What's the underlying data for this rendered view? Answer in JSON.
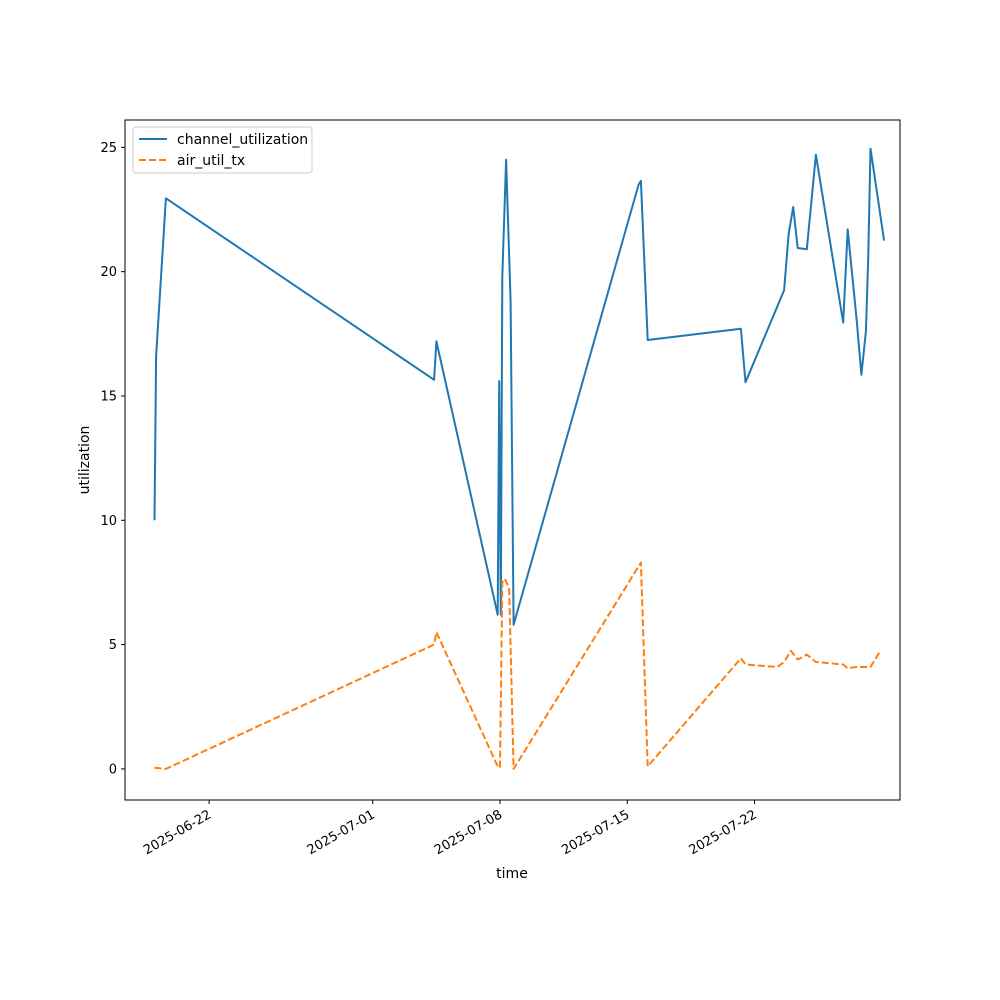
{
  "chart_data": {
    "type": "line",
    "xlabel": "time",
    "ylabel": "utilization",
    "ylim": [
      -1.25,
      26.1
    ],
    "xlim": [
      "2025-06-17T09:00:00",
      "2025-07-30T00:00:00"
    ],
    "x_ticks": [
      "2025-06-22",
      "2025-07-01",
      "2025-07-08",
      "2025-07-15",
      "2025-07-22"
    ],
    "y_ticks": [
      0,
      5,
      10,
      15,
      20,
      25
    ],
    "grid": false,
    "legend_position": "top-left",
    "series": [
      {
        "name": "channel_utilization",
        "color": "#1f77b4",
        "style": "solid",
        "points": [
          [
            "2025-06-19T00:00:00",
            10.0
          ],
          [
            "2025-06-19T02:00:00",
            16.6
          ],
          [
            "2025-06-19T15:00:00",
            22.95
          ],
          [
            "2025-07-04T09:00:00",
            15.65
          ],
          [
            "2025-07-04T12:00:00",
            17.2
          ],
          [
            "2025-07-07T21:00:00",
            6.2
          ],
          [
            "2025-07-07T23:00:00",
            15.6
          ],
          [
            "2025-07-08T01:00:00",
            6.2
          ],
          [
            "2025-07-08T03:00:00",
            19.8
          ],
          [
            "2025-07-08T08:00:00",
            24.5
          ],
          [
            "2025-07-08T14:00:00",
            18.8
          ],
          [
            "2025-07-08T18:00:00",
            5.8
          ],
          [
            "2025-07-15T15:00:00",
            23.5
          ],
          [
            "2025-07-15T18:00:00",
            23.65
          ],
          [
            "2025-07-16T03:00:00",
            17.25
          ],
          [
            "2025-07-21T06:00:00",
            17.7
          ],
          [
            "2025-07-21T12:00:00",
            15.55
          ],
          [
            "2025-07-23T15:00:00",
            19.25
          ],
          [
            "2025-07-23T21:00:00",
            21.5
          ],
          [
            "2025-07-24T03:00:00",
            22.6
          ],
          [
            "2025-07-24T09:00:00",
            20.95
          ],
          [
            "2025-07-24T21:00:00",
            20.9
          ],
          [
            "2025-07-25T09:00:00",
            24.7
          ],
          [
            "2025-07-26T21:00:00",
            17.95
          ],
          [
            "2025-07-27T03:00:00",
            21.7
          ],
          [
            "2025-07-27T15:00:00",
            18.0
          ],
          [
            "2025-07-27T21:00:00",
            15.85
          ],
          [
            "2025-07-28T03:00:00",
            17.6
          ],
          [
            "2025-07-28T06:00:00",
            20.5
          ],
          [
            "2025-07-28T09:00:00",
            24.95
          ],
          [
            "2025-07-28T21:00:00",
            22.5
          ],
          [
            "2025-07-29T03:00:00",
            21.25
          ]
        ]
      },
      {
        "name": "air_util_tx",
        "color": "#ff7f0e",
        "style": "dashed",
        "points": [
          [
            "2025-06-19T00:00:00",
            0.05
          ],
          [
            "2025-06-19T15:00:00",
            0.0
          ],
          [
            "2025-07-04T09:00:00",
            5.0
          ],
          [
            "2025-07-04T12:00:00",
            5.5
          ],
          [
            "2025-07-07T21:00:00",
            0.1
          ],
          [
            "2025-07-08T00:00:00",
            0.05
          ],
          [
            "2025-07-08T03:00:00",
            7.5
          ],
          [
            "2025-07-08T06:00:00",
            7.65
          ],
          [
            "2025-07-08T12:00:00",
            7.3
          ],
          [
            "2025-07-08T18:00:00",
            0.0
          ],
          [
            "2025-07-15T18:00:00",
            8.3
          ],
          [
            "2025-07-16T03:00:00",
            0.1
          ],
          [
            "2025-07-21T06:00:00",
            4.45
          ],
          [
            "2025-07-21T12:00:00",
            4.2
          ],
          [
            "2025-07-23T06:00:00",
            4.1
          ],
          [
            "2025-07-23T15:00:00",
            4.3
          ],
          [
            "2025-07-24T00:00:00",
            4.75
          ],
          [
            "2025-07-24T09:00:00",
            4.4
          ],
          [
            "2025-07-24T21:00:00",
            4.6
          ],
          [
            "2025-07-25T09:00:00",
            4.3
          ],
          [
            "2025-07-26T21:00:00",
            4.2
          ],
          [
            "2025-07-27T03:00:00",
            4.05
          ],
          [
            "2025-07-27T15:00:00",
            4.1
          ],
          [
            "2025-07-28T09:00:00",
            4.1
          ],
          [
            "2025-07-28T21:00:00",
            4.7
          ]
        ]
      }
    ]
  }
}
